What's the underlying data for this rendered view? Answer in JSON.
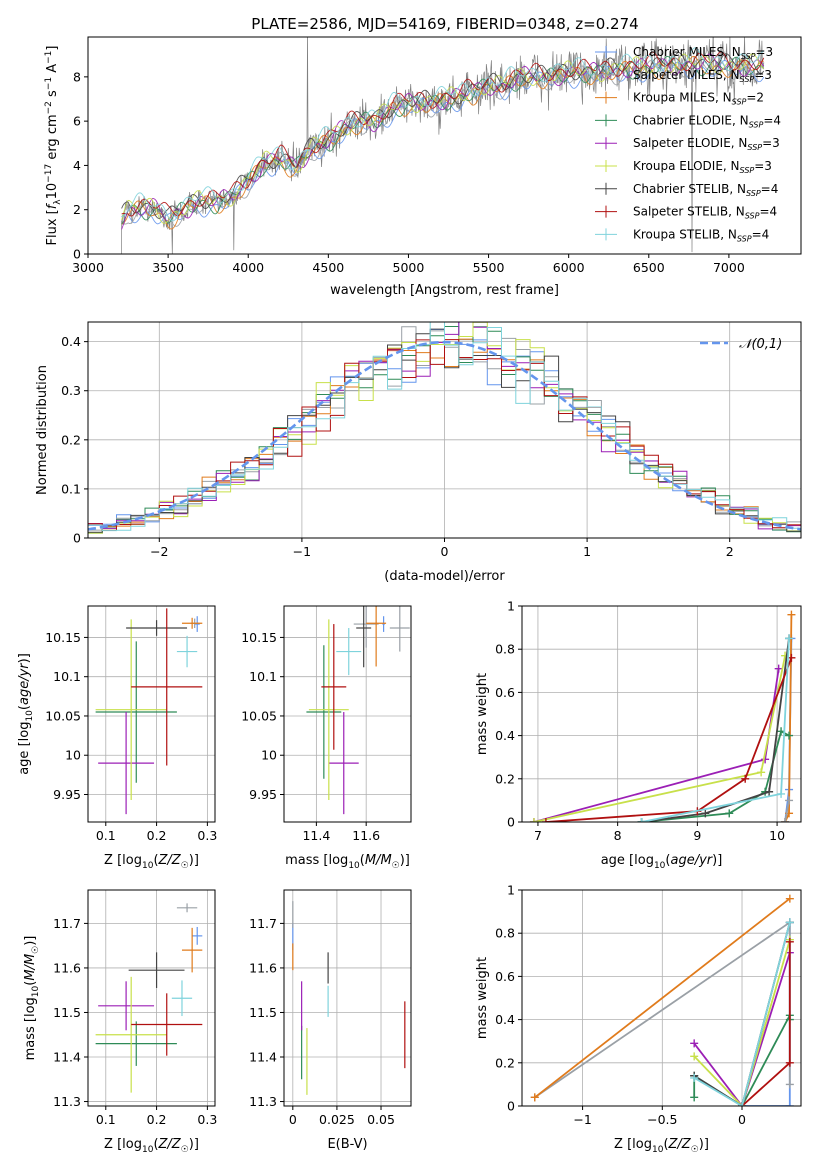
{
  "title": "PLATE=2586, MJD=54169, FIBERID=0348, z=0.274",
  "series": [
    {
      "name": "Chabrier MILES, N_SSP=3",
      "lib": "MILES",
      "imf": "Chabrier",
      "nssp": "3",
      "color": "#6495ed"
    },
    {
      "name": "Salpeter MILES, N_SSP=3",
      "lib": "MILES",
      "imf": "Salpeter",
      "nssp": "3",
      "color": "#9aa0a6"
    },
    {
      "name": "Kroupa MILES, N_SSP=2",
      "lib": "MILES",
      "imf": "Kroupa",
      "nssp": "2",
      "color": "#e07b1c"
    },
    {
      "name": "Chabrier ELODIE, N_SSP=4",
      "lib": "ELODIE",
      "imf": "Chabrier",
      "nssp": "4",
      "color": "#2e8b57"
    },
    {
      "name": "Salpeter ELODIE, N_SSP=3",
      "lib": "ELODIE",
      "imf": "Salpeter",
      "nssp": "3",
      "color": "#9b1fb5"
    },
    {
      "name": "Kroupa ELODIE, N_SSP=3",
      "lib": "ELODIE",
      "imf": "Kroupa",
      "nssp": "3",
      "color": "#c8e04a"
    },
    {
      "name": "Chabrier STELIB, N_SSP=4",
      "lib": "STELIB",
      "imf": "Chabrier",
      "nssp": "4",
      "color": "#444444"
    },
    {
      "name": "Salpeter STELIB, N_SSP=4",
      "lib": "STELIB",
      "imf": "Salpeter",
      "nssp": "4",
      "color": "#b01010"
    },
    {
      "name": "Kroupa STELIB, N_SSP=4",
      "lib": "STELIB",
      "imf": "Kroupa",
      "nssp": "4",
      "color": "#7fd3dc"
    }
  ],
  "chart_data": [
    {
      "type": "line",
      "id": "spectrum",
      "xlabel": "wavelength [Angstrom, rest frame]",
      "ylabel": "Flux [f_λ 10^-17 erg cm^-2 s^-1 A^-1]",
      "xlim": [
        3000,
        7450
      ],
      "ylim": [
        0,
        9.8
      ],
      "xticks": [
        3000,
        3500,
        4000,
        4500,
        5000,
        5500,
        6000,
        6500,
        7000
      ],
      "yticks": [
        0,
        2,
        4,
        6,
        8
      ],
      "legend": "right",
      "grid": false,
      "data_color": "#808080",
      "continuum_points": [
        [
          3210,
          1.5
        ],
        [
          3250,
          2.0
        ],
        [
          3400,
          2.1
        ],
        [
          3500,
          1.6
        ],
        [
          3600,
          2.0
        ],
        [
          3700,
          2.4
        ],
        [
          3800,
          2.3
        ],
        [
          3900,
          2.6
        ],
        [
          4000,
          3.3
        ],
        [
          4100,
          4.1
        ],
        [
          4200,
          4.3
        ],
        [
          4300,
          3.9
        ],
        [
          4400,
          4.8
        ],
        [
          4500,
          5.1
        ],
        [
          4600,
          5.7
        ],
        [
          4700,
          6.0
        ],
        [
          4800,
          6.0
        ],
        [
          4900,
          6.6
        ],
        [
          5000,
          6.8
        ],
        [
          5100,
          6.8
        ],
        [
          5200,
          6.9
        ],
        [
          5300,
          7.1
        ],
        [
          5400,
          7.3
        ],
        [
          5500,
          7.6
        ],
        [
          5600,
          7.6
        ],
        [
          5700,
          8.0
        ],
        [
          5800,
          8.0
        ],
        [
          5900,
          8.0
        ],
        [
          6000,
          8.2
        ],
        [
          6200,
          8.2
        ],
        [
          6400,
          8.4
        ],
        [
          6600,
          8.5
        ],
        [
          6800,
          8.6
        ],
        [
          7000,
          8.5
        ],
        [
          7220,
          8.5
        ]
      ],
      "spikes": [
        [
          3525,
          -1.7
        ],
        [
          3910,
          -2.5
        ],
        [
          4370,
          5.8
        ],
        [
          5190,
          -1.5
        ],
        [
          6770,
          -8.5
        ]
      ]
    },
    {
      "type": "bar",
      "id": "residuals",
      "xlabel": "(data-model)/error",
      "ylabel": "Normed distribution",
      "xlim": [
        -2.5,
        2.5
      ],
      "ylim": [
        0,
        0.44
      ],
      "xticks": [
        -2,
        -1,
        0,
        1,
        2
      ],
      "yticks": [
        0.0,
        0.1,
        0.2,
        0.3,
        0.4
      ],
      "bin_width": 0.1,
      "bin_start": -2.5,
      "legend": "top-right",
      "legend_label": "𝒩(0,1)",
      "normal_color": "#6495ed",
      "grid": true
    },
    {
      "type": "scatter",
      "id": "age_vs_Z",
      "xlabel": "Z [log10(Z/Z☉)]",
      "ylabel": "age [log10(age/yr)]",
      "xlim": [
        0.065,
        0.315
      ],
      "ylim": [
        9.915,
        10.19
      ],
      "xticks": [
        0.1,
        0.2,
        0.3
      ],
      "yticks": [
        9.95,
        10.0,
        10.05,
        10.1,
        10.15
      ],
      "points": [
        {
          "s": 0,
          "x": 0.28,
          "xerr": 0.005,
          "y": 10.167,
          "yerr": 0.01
        },
        {
          "s": 1,
          "x": 0.275,
          "xerr": 0.008,
          "y": 10.168,
          "yerr": 0.006
        },
        {
          "s": 2,
          "x": 0.27,
          "xerr": 0.02,
          "y": 10.168,
          "yerr": 0.007
        },
        {
          "s": 3,
          "x": 0.16,
          "xerr": 0.08,
          "y": 10.055,
          "yerr": 0.09
        },
        {
          "s": 4,
          "x": 0.14,
          "xerr": 0.055,
          "y": 9.99,
          "yerr": 0.065
        },
        {
          "s": 5,
          "x": 0.15,
          "xerr": 0.07,
          "y": 10.058,
          "yerr": 0.115
        },
        {
          "s": 6,
          "x": 0.2,
          "xerr": 0.06,
          "y": 10.162,
          "yerr": 0.01
        },
        {
          "s": 7,
          "x": 0.22,
          "xerr": 0.07,
          "y": 10.087,
          "yerr": 0.1
        },
        {
          "s": 8,
          "x": 0.26,
          "xerr": 0.02,
          "y": 10.132,
          "yerr": 0.02
        }
      ]
    },
    {
      "type": "scatter",
      "id": "age_vs_mass",
      "xlabel": "mass [log10(M/M☉)]",
      "ylabel": "",
      "xlim": [
        11.27,
        11.78
      ],
      "ylim": [
        9.915,
        10.19
      ],
      "xticks": [
        11.4,
        11.6
      ],
      "yticks": [
        9.95,
        10.0,
        10.05,
        10.1,
        10.15
      ],
      "points": [
        {
          "s": 0,
          "x": 11.67,
          "xerr": 0.005,
          "y": 10.167,
          "yerr": 0.01
        },
        {
          "s": 1,
          "x": 11.6,
          "xerr": 0.05,
          "y": 10.167,
          "yerr": 0.03
        },
        {
          "s": 2,
          "x": 11.64,
          "xerr": 0.04,
          "y": 10.168,
          "yerr": 0.055
        },
        {
          "s": 3,
          "x": 11.43,
          "xerr": 0.07,
          "y": 10.055,
          "yerr": 0.085
        },
        {
          "s": 4,
          "x": 11.51,
          "xerr": 0.06,
          "y": 9.99,
          "yerr": 0.065
        },
        {
          "s": 5,
          "x": 11.45,
          "xerr": 0.08,
          "y": 10.058,
          "yerr": 0.115
        },
        {
          "s": 6,
          "x": 11.59,
          "xerr": 0.03,
          "y": 10.162,
          "yerr": 0.05
        },
        {
          "s": 7,
          "x": 11.47,
          "xerr": 0.05,
          "y": 10.087,
          "yerr": 0.08
        },
        {
          "s": 8,
          "x": 11.53,
          "xerr": 0.05,
          "y": 10.132,
          "yerr": 0.03
        },
        {
          "s": 1,
          "x": 11.735,
          "xerr": 0.04,
          "y": 10.162,
          "yerr": 0.03
        }
      ]
    },
    {
      "type": "line",
      "id": "massweight_vs_age",
      "xlabel": "age [log10(age/yr)]",
      "ylabel": "mass weight",
      "xlim": [
        6.8,
        10.3
      ],
      "ylim": [
        0,
        1.0
      ],
      "xticks": [
        7,
        8,
        9,
        10
      ],
      "yticks": [
        0.0,
        0.2,
        0.4,
        0.6,
        0.8,
        1.0
      ],
      "lines": [
        {
          "s": 0,
          "pts": [
            [
              10.1,
              0.0
            ],
            [
              10.15,
              0.15
            ],
            [
              10.18,
              0.85
            ]
          ]
        },
        {
          "s": 2,
          "pts": [
            [
              10.1,
              0.0
            ],
            [
              10.15,
              0.04
            ],
            [
              10.18,
              0.96
            ]
          ]
        },
        {
          "s": 3,
          "pts": [
            [
              8.3,
              0.0
            ],
            [
              9.4,
              0.04
            ],
            [
              9.85,
              0.14
            ],
            [
              10.05,
              0.42
            ],
            [
              10.15,
              0.4
            ]
          ]
        },
        {
          "s": 4,
          "pts": [
            [
              6.95,
              0.0
            ],
            [
              9.85,
              0.29
            ],
            [
              10.02,
              0.71
            ]
          ]
        },
        {
          "s": 5,
          "pts": [
            [
              6.95,
              0.0
            ],
            [
              9.8,
              0.23
            ],
            [
              10.1,
              0.77
            ]
          ]
        },
        {
          "s": 6,
          "pts": [
            [
              8.3,
              0.0
            ],
            [
              9.1,
              0.04
            ],
            [
              9.9,
              0.14
            ],
            [
              10.15,
              0.85
            ]
          ]
        },
        {
          "s": 7,
          "pts": [
            [
              7.1,
              0.0
            ],
            [
              9.0,
              0.05
            ],
            [
              9.6,
              0.2
            ],
            [
              10.18,
              0.76
            ]
          ]
        },
        {
          "s": 8,
          "pts": [
            [
              8.3,
              0.0
            ],
            [
              10.05,
              0.13
            ],
            [
              10.15,
              0.85
            ]
          ]
        },
        {
          "s": 1,
          "pts": [
            [
              10.1,
              0.0
            ],
            [
              10.15,
              0.1
            ]
          ]
        }
      ]
    },
    {
      "type": "scatter",
      "id": "mass_vs_Z",
      "xlabel": "Z [log10(Z/Z☉)]",
      "ylabel": "mass [log10(M/M☉)]",
      "xlim": [
        0.065,
        0.315
      ],
      "ylim": [
        11.29,
        11.775
      ],
      "xticks": [
        0.1,
        0.2,
        0.3
      ],
      "yticks": [
        11.3,
        11.4,
        11.5,
        11.6,
        11.7
      ],
      "points": [
        {
          "s": 0,
          "x": 0.28,
          "xerr": 0.01,
          "y": 11.672,
          "yerr": 0.02
        },
        {
          "s": 1,
          "x": 0.26,
          "xerr": 0.02,
          "y": 11.735,
          "yerr": 0.01
        },
        {
          "s": 2,
          "x": 0.27,
          "xerr": 0.02,
          "y": 11.64,
          "yerr": 0.05
        },
        {
          "s": 3,
          "x": 0.16,
          "xerr": 0.08,
          "y": 11.43,
          "yerr": 0.05
        },
        {
          "s": 4,
          "x": 0.14,
          "xerr": 0.055,
          "y": 11.515,
          "yerr": 0.055
        },
        {
          "s": 5,
          "x": 0.15,
          "xerr": 0.07,
          "y": 11.45,
          "yerr": 0.13
        },
        {
          "s": 6,
          "x": 0.2,
          "xerr": 0.055,
          "y": 11.595,
          "yerr": 0.04
        },
        {
          "s": 7,
          "x": 0.22,
          "xerr": 0.07,
          "y": 11.473,
          "yerr": 0.07
        },
        {
          "s": 8,
          "x": 0.25,
          "xerr": 0.02,
          "y": 11.532,
          "yerr": 0.04
        }
      ]
    },
    {
      "type": "scatter",
      "id": "mass_vs_EBV",
      "xlabel": "E(B-V)",
      "ylabel": "",
      "xlim": [
        -0.005,
        0.067
      ],
      "ylim": [
        11.29,
        11.775
      ],
      "xticks": [
        0.0,
        0.025,
        0.05
      ],
      "yticks": [
        11.3,
        11.4,
        11.5,
        11.6,
        11.7
      ],
      "points": [
        {
          "s": 0,
          "x": 0.0,
          "xerr": 0,
          "y": 11.67,
          "yerr": 0.03
        },
        {
          "s": 1,
          "x": 0.0,
          "xerr": 0,
          "y": 11.72,
          "yerr": 0.03
        },
        {
          "s": 2,
          "x": 0.0,
          "xerr": 0,
          "y": 11.625,
          "yerr": 0.03
        },
        {
          "s": 3,
          "x": 0.005,
          "xerr": 0,
          "y": 11.41,
          "yerr": 0.06
        },
        {
          "s": 4,
          "x": 0.005,
          "xerr": 0,
          "y": 11.515,
          "yerr": 0.055
        },
        {
          "s": 5,
          "x": 0.008,
          "xerr": 0,
          "y": 11.39,
          "yerr": 0.075
        },
        {
          "s": 6,
          "x": 0.02,
          "xerr": 0,
          "y": 11.6,
          "yerr": 0.035
        },
        {
          "s": 7,
          "x": 0.0635,
          "xerr": 0,
          "y": 11.45,
          "yerr": 0.075
        },
        {
          "s": 8,
          "x": 0.02,
          "xerr": 0,
          "y": 11.525,
          "yerr": 0.035
        }
      ]
    },
    {
      "type": "line",
      "id": "massweight_vs_Z",
      "xlabel": "Z [log10(Z/Z☉)]",
      "ylabel": "mass weight",
      "xlim": [
        -1.38,
        0.37
      ],
      "ylim": [
        0,
        1.0
      ],
      "xticks": [
        -1.0,
        -0.5,
        0.0
      ],
      "yticks": [
        0.0,
        0.2,
        0.4,
        0.6,
        0.8,
        1.0
      ],
      "lines": [
        {
          "s": 0,
          "pts": [
            [
              0.0,
              0.0
            ],
            [
              0.3,
              0.0
            ],
            [
              0.3,
              0.85
            ]
          ]
        },
        {
          "s": 1,
          "pts": [
            [
              -1.3,
              0.04
            ],
            [
              0.3,
              0.85
            ],
            [
              0.3,
              0.1
            ]
          ]
        },
        {
          "s": 2,
          "pts": [
            [
              -1.3,
              0.04
            ],
            [
              0.3,
              0.96
            ]
          ]
        },
        {
          "s": 3,
          "pts": [
            [
              -0.3,
              0.04
            ],
            [
              -0.3,
              0.14
            ],
            [
              0.0,
              0.0
            ],
            [
              0.3,
              0.42
            ],
            [
              0.3,
              0.4
            ]
          ]
        },
        {
          "s": 4,
          "pts": [
            [
              -0.3,
              0.29
            ],
            [
              0.0,
              0.0
            ],
            [
              0.3,
              0.71
            ]
          ]
        },
        {
          "s": 5,
          "pts": [
            [
              -0.3,
              0.23
            ],
            [
              0.0,
              0.0
            ],
            [
              0.3,
              0.77
            ]
          ]
        },
        {
          "s": 6,
          "pts": [
            [
              -0.3,
              0.14
            ],
            [
              0.0,
              0.0
            ],
            [
              0.3,
              0.85
            ]
          ]
        },
        {
          "s": 7,
          "pts": [
            [
              0.0,
              0.0
            ],
            [
              0.3,
              0.2
            ],
            [
              0.3,
              0.76
            ]
          ]
        },
        {
          "s": 8,
          "pts": [
            [
              -0.3,
              0.13
            ],
            [
              0.0,
              0.0
            ],
            [
              0.3,
              0.85
            ]
          ]
        }
      ]
    }
  ]
}
